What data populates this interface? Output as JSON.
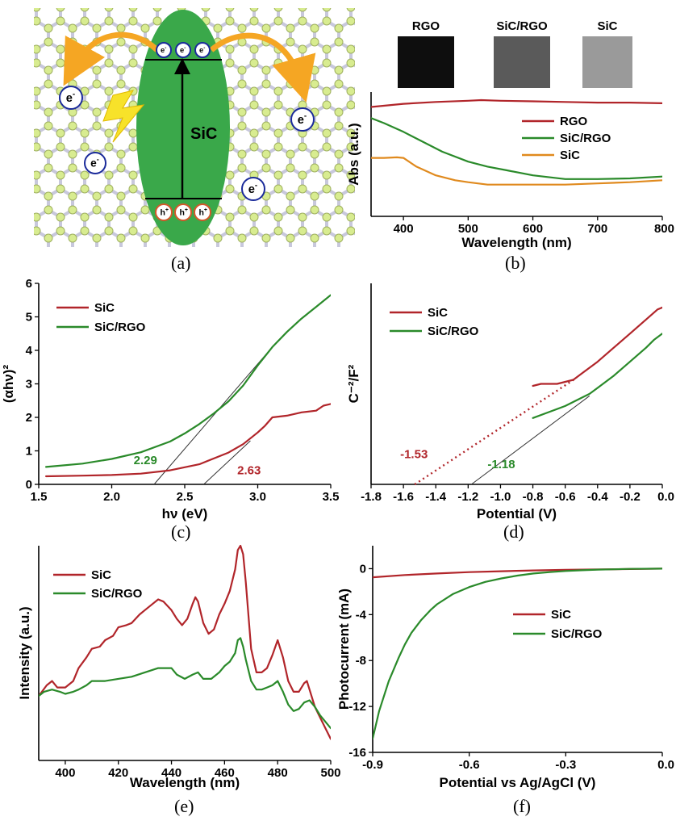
{
  "colors": {
    "sic": "#b1252a",
    "sic_rgo": "#2a8a2a",
    "sic_orange": "#e08a1e",
    "rgo": "#b1252a",
    "ellipse": "#3aa84a",
    "arrow": "#f5a623",
    "lightning": "#f7e22a",
    "node": "#d8ec90",
    "bond": "#c8c8dc"
  },
  "panel_labels": [
    "(a)",
    "(b)",
    "(c)",
    "(d)",
    "(e)",
    "(f)"
  ],
  "schematic": {
    "center_label": "SiC",
    "electron": "e",
    "electron_sup": "-",
    "hole": "h",
    "hole_sup": "+",
    "icon": "sic-rgo-charge-transfer-schematic"
  },
  "sample_photos": [
    "RGO",
    "SiC/RGO",
    "SiC"
  ],
  "chart_data": [
    {
      "id": "b",
      "type": "line",
      "title": "",
      "xlabel": "Wavelength (nm)",
      "ylabel": "Abs (a.u.)",
      "xlim": [
        350,
        800
      ],
      "ylim": [
        0,
        1
      ],
      "xticks": [
        400,
        500,
        600,
        700,
        800
      ],
      "xtick_labels": [
        "400",
        "500",
        "600",
        "700",
        "800"
      ],
      "legend": [
        "RGO",
        "SiC/RGO",
        "SiC"
      ],
      "series": [
        {
          "name": "RGO",
          "color_key": "rgo",
          "x": [
            350,
            400,
            450,
            500,
            520,
            550,
            600,
            650,
            700,
            750,
            800
          ],
          "y": [
            0.88,
            0.905,
            0.92,
            0.93,
            0.935,
            0.93,
            0.925,
            0.92,
            0.915,
            0.915,
            0.91
          ]
        },
        {
          "name": "SiC/RGO",
          "color_key": "sic_rgo",
          "x": [
            350,
            370,
            400,
            430,
            460,
            500,
            530,
            560,
            600,
            650,
            700,
            750,
            800
          ],
          "y": [
            0.79,
            0.75,
            0.68,
            0.6,
            0.52,
            0.44,
            0.4,
            0.37,
            0.33,
            0.3,
            0.3,
            0.305,
            0.32
          ]
        },
        {
          "name": "SiC",
          "color_key": "sic_orange",
          "x": [
            350,
            370,
            390,
            400,
            420,
            450,
            480,
            500,
            530,
            600,
            650,
            700,
            750,
            800
          ],
          "y": [
            0.47,
            0.47,
            0.475,
            0.47,
            0.4,
            0.33,
            0.29,
            0.275,
            0.255,
            0.255,
            0.255,
            0.265,
            0.275,
            0.29
          ]
        }
      ]
    },
    {
      "id": "c",
      "type": "line",
      "title": "",
      "xlabel": "hν (eV)",
      "ylabel": "(αhν)²",
      "xlim": [
        1.5,
        3.5
      ],
      "ylim": [
        0,
        6
      ],
      "xticks": [
        1.5,
        2.0,
        2.5,
        3.0,
        3.5
      ],
      "xtick_labels": [
        "1.5",
        "2.0",
        "2.5",
        "3.0",
        "3.5"
      ],
      "yticks": [
        0,
        1,
        2,
        3,
        4,
        5,
        6
      ],
      "ytick_labels": [
        "0",
        "1",
        "2",
        "3",
        "4",
        "5",
        "6"
      ],
      "legend": [
        "SiC",
        "SiC/RGO"
      ],
      "series": [
        {
          "name": "SiC",
          "color_key": "sic",
          "x": [
            1.55,
            1.8,
            2.0,
            2.2,
            2.4,
            2.6,
            2.8,
            2.9,
            3.0,
            3.05,
            3.1,
            3.2,
            3.3,
            3.4,
            3.45,
            3.5
          ],
          "y": [
            0.24,
            0.26,
            0.28,
            0.32,
            0.42,
            0.6,
            0.95,
            1.2,
            1.55,
            1.75,
            2.0,
            2.05,
            2.15,
            2.2,
            2.35,
            2.4
          ]
        },
        {
          "name": "SiC/RGO",
          "color_key": "sic_rgo",
          "x": [
            1.55,
            1.8,
            2.0,
            2.2,
            2.4,
            2.5,
            2.6,
            2.7,
            2.8,
            2.9,
            3.0,
            3.1,
            3.2,
            3.3,
            3.4,
            3.5
          ],
          "y": [
            0.52,
            0.62,
            0.76,
            0.96,
            1.28,
            1.52,
            1.8,
            2.12,
            2.48,
            2.95,
            3.55,
            4.1,
            4.55,
            4.95,
            5.3,
            5.65
          ]
        }
      ],
      "fit_lines": [
        {
          "color_key": "sic_rgo",
          "x": [
            2.29,
            3.1
          ],
          "y": [
            0,
            4.1
          ]
        },
        {
          "color_key": "sic",
          "x": [
            2.63,
            2.95
          ],
          "y": [
            0,
            1.3
          ]
        }
      ],
      "annotations": [
        {
          "text": "2.29",
          "color_key": "sic_rgo",
          "x": 2.15,
          "y": 0.6
        },
        {
          "text": "2.63",
          "color_key": "sic",
          "x": 2.86,
          "y": 0.3
        }
      ]
    },
    {
      "id": "d",
      "type": "line",
      "title": "",
      "xlabel": "Potential (V)",
      "ylabel": "C⁻²/F²",
      "xlim": [
        -1.8,
        0.0
      ],
      "ylim": [
        0,
        1
      ],
      "xticks": [
        -1.8,
        -1.6,
        -1.4,
        -1.2,
        -1.0,
        -0.8,
        -0.6,
        -0.4,
        -0.2,
        0.0
      ],
      "xtick_labels": [
        "-1.8",
        "-1.6",
        "-1.4",
        "-1.2",
        "-1.0",
        "-0.8",
        "-0.6",
        "-0.4",
        "-0.2",
        "0.0"
      ],
      "legend": [
        "SiC",
        "SiC/RGO"
      ],
      "series": [
        {
          "name": "SiC",
          "color_key": "sic",
          "x": [
            -0.8,
            -0.75,
            -0.7,
            -0.65,
            -0.6,
            -0.55,
            -0.5,
            -0.4,
            -0.3,
            -0.2,
            -0.1,
            -0.03,
            0.0
          ],
          "y": [
            0.49,
            0.5,
            0.5,
            0.5,
            0.51,
            0.52,
            0.55,
            0.61,
            0.68,
            0.75,
            0.82,
            0.87,
            0.88
          ]
        },
        {
          "name": "SiC/RGO",
          "color_key": "sic_rgo",
          "x": [
            -0.8,
            -0.7,
            -0.6,
            -0.5,
            -0.45,
            -0.4,
            -0.3,
            -0.2,
            -0.1,
            -0.05,
            0.0
          ],
          "y": [
            0.33,
            0.36,
            0.39,
            0.43,
            0.45,
            0.48,
            0.54,
            0.61,
            0.68,
            0.72,
            0.75
          ]
        }
      ],
      "fit_lines": [
        {
          "color_key": "sic",
          "dashed": true,
          "x": [
            -1.53,
            -0.53
          ],
          "y": [
            0,
            0.53
          ]
        },
        {
          "color_key": "sic_rgo",
          "dashed": false,
          "x": [
            -1.18,
            -0.45
          ],
          "y": [
            0,
            0.44
          ]
        }
      ],
      "annotations": [
        {
          "text": "-1.53",
          "color_key": "sic",
          "x": -1.62,
          "y": 0.13
        },
        {
          "text": "-1.18",
          "color_key": "sic_rgo",
          "x": -1.08,
          "y": 0.08
        }
      ]
    },
    {
      "id": "e",
      "type": "line",
      "title": "",
      "xlabel": "Wavelength (nm)",
      "ylabel": "Intensity (a.u.)",
      "xlim": [
        390,
        500
      ],
      "ylim": [
        0,
        1
      ],
      "xticks": [
        400,
        420,
        440,
        460,
        480,
        500
      ],
      "xtick_labels": [
        "400",
        "420",
        "440",
        "460",
        "480",
        "500"
      ],
      "legend": [
        "SiC",
        "SiC/RGO"
      ],
      "series": [
        {
          "name": "SiC",
          "color_key": "sic",
          "x": [
            390,
            393,
            395,
            397,
            400,
            403,
            405,
            408,
            410,
            413,
            415,
            418,
            420,
            423,
            425,
            428,
            430,
            433,
            435,
            437,
            440,
            442,
            444,
            446,
            448,
            449,
            450,
            452,
            454,
            456,
            458,
            460,
            462,
            464,
            465,
            466,
            467,
            468,
            470,
            472,
            474,
            476,
            478,
            480,
            482,
            484,
            486,
            488,
            490,
            491,
            492,
            494,
            496,
            498,
            500
          ],
          "y": [
            0.3,
            0.35,
            0.37,
            0.34,
            0.34,
            0.37,
            0.43,
            0.48,
            0.52,
            0.53,
            0.56,
            0.58,
            0.62,
            0.63,
            0.64,
            0.68,
            0.7,
            0.73,
            0.75,
            0.74,
            0.7,
            0.66,
            0.63,
            0.66,
            0.73,
            0.76,
            0.74,
            0.64,
            0.59,
            0.61,
            0.68,
            0.73,
            0.79,
            0.89,
            0.98,
            1.0,
            0.96,
            0.83,
            0.52,
            0.41,
            0.41,
            0.43,
            0.49,
            0.56,
            0.48,
            0.37,
            0.32,
            0.32,
            0.36,
            0.37,
            0.33,
            0.25,
            0.2,
            0.15,
            0.1
          ]
        },
        {
          "name": "SiC/RGO",
          "color_key": "sic_rgo",
          "x": [
            390,
            392,
            395,
            398,
            400,
            403,
            405,
            408,
            410,
            415,
            420,
            425,
            430,
            435,
            437,
            440,
            442,
            445,
            448,
            450,
            452,
            455,
            458,
            460,
            462,
            464,
            465,
            466,
            467,
            468,
            470,
            472,
            474,
            476,
            478,
            480,
            482,
            484,
            486,
            488,
            490,
            492,
            494,
            496,
            498,
            500
          ],
          "y": [
            0.3,
            0.32,
            0.33,
            0.32,
            0.31,
            0.32,
            0.33,
            0.35,
            0.37,
            0.37,
            0.38,
            0.39,
            0.41,
            0.43,
            0.43,
            0.43,
            0.4,
            0.38,
            0.4,
            0.41,
            0.38,
            0.38,
            0.41,
            0.44,
            0.46,
            0.5,
            0.56,
            0.57,
            0.53,
            0.47,
            0.37,
            0.33,
            0.33,
            0.34,
            0.35,
            0.37,
            0.32,
            0.26,
            0.23,
            0.24,
            0.27,
            0.28,
            0.25,
            0.21,
            0.18,
            0.15
          ]
        }
      ]
    },
    {
      "id": "f",
      "type": "line",
      "title": "",
      "xlabel": "Potential vs Ag/AgCl (V)",
      "ylabel": "Photocurrent (mA)",
      "xlim": [
        -0.9,
        0.0
      ],
      "ylim": [
        -16,
        2
      ],
      "xticks": [
        -0.9,
        -0.6,
        -0.3,
        0.0
      ],
      "xtick_labels": [
        "-0.9",
        "-0.6",
        "-0.3",
        "0.0"
      ],
      "yticks": [
        0,
        -4,
        -8,
        -12,
        -16
      ],
      "ytick_labels": [
        "0",
        "-4",
        "-8",
        "-12",
        "-16"
      ],
      "legend": [
        "SiC",
        "SiC/RGO"
      ],
      "series": [
        {
          "name": "SiC",
          "color_key": "sic",
          "x": [
            -0.9,
            -0.8,
            -0.7,
            -0.6,
            -0.5,
            -0.4,
            -0.3,
            -0.2,
            -0.1,
            0.0
          ],
          "y": [
            -0.75,
            -0.55,
            -0.42,
            -0.3,
            -0.22,
            -0.15,
            -0.1,
            -0.07,
            -0.03,
            0.0
          ]
        },
        {
          "name": "SiC/RGO",
          "color_key": "sic_rgo",
          "x": [
            -0.9,
            -0.88,
            -0.85,
            -0.82,
            -0.8,
            -0.78,
            -0.75,
            -0.72,
            -0.7,
            -0.65,
            -0.6,
            -0.55,
            -0.5,
            -0.45,
            -0.4,
            -0.35,
            -0.3,
            -0.25,
            -0.2,
            -0.15,
            -0.1,
            0.0
          ],
          "y": [
            -14.8,
            -12.4,
            -9.8,
            -7.8,
            -6.6,
            -5.6,
            -4.5,
            -3.6,
            -3.1,
            -2.2,
            -1.6,
            -1.15,
            -0.85,
            -0.6,
            -0.42,
            -0.3,
            -0.2,
            -0.14,
            -0.08,
            -0.05,
            -0.02,
            0.0
          ]
        }
      ]
    }
  ]
}
